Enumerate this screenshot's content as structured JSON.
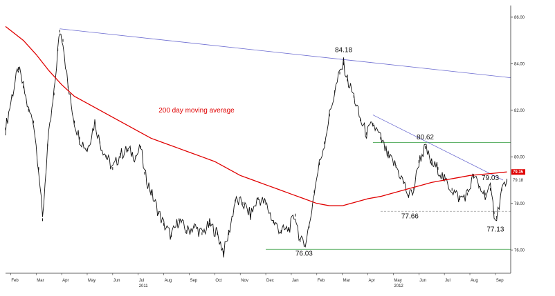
{
  "chart_data": {
    "type": "candlestick",
    "title": "",
    "xlabel": "",
    "ylabel": "",
    "ylim": [
      75.0,
      86.5
    ],
    "y_ticks": [
      "76.00",
      "78.00",
      "80.00",
      "82.00",
      "84.00",
      "86.00"
    ],
    "y_tick_values": [
      76,
      78,
      80,
      82,
      84,
      86
    ],
    "month_labels": [
      "Feb",
      "Mar",
      "Apr",
      "May",
      "Jun",
      "Jul",
      "Aug",
      "Sep",
      "Oct",
      "Nov",
      "Dec",
      "Jan",
      "Feb",
      "Mar",
      "Apr",
      "May",
      "Jun",
      "Jul",
      "Aug",
      "Sep"
    ],
    "month_positions": [
      0,
      1,
      2,
      3,
      4,
      5,
      6,
      7,
      8,
      9,
      10,
      11,
      12,
      13,
      14,
      15,
      16,
      17,
      18,
      19
    ],
    "x_range": [
      -0.2,
      19.6
    ],
    "year_labels": [
      {
        "text": "2011",
        "at": 5
      },
      {
        "text": "2012",
        "at": 15
      }
    ],
    "price_series": [
      [
        -0.2,
        81.2
      ],
      [
        0.05,
        82.6
      ],
      [
        0.3,
        83.8
      ],
      [
        0.5,
        83.0
      ],
      [
        0.7,
        82.0
      ],
      [
        0.9,
        81.5
      ],
      [
        1.1,
        79.5
      ],
      [
        1.25,
        77.3
      ],
      [
        1.45,
        80.5
      ],
      [
        1.7,
        82.7
      ],
      [
        1.85,
        84.6
      ],
      [
        1.93,
        85.4
      ],
      [
        2.05,
        85.0
      ],
      [
        2.25,
        83.0
      ],
      [
        2.5,
        81.5
      ],
      [
        2.7,
        80.8
      ],
      [
        3.0,
        80.3
      ],
      [
        3.3,
        81.5
      ],
      [
        3.5,
        80.6
      ],
      [
        3.75,
        80.0
      ],
      [
        4.0,
        79.5
      ],
      [
        4.3,
        80.1
      ],
      [
        4.6,
        80.3
      ],
      [
        4.9,
        80.0
      ],
      [
        5.1,
        80.4
      ],
      [
        5.25,
        79.3
      ],
      [
        5.5,
        78.5
      ],
      [
        5.8,
        77.6
      ],
      [
        6.0,
        77.1
      ],
      [
        6.3,
        76.6
      ],
      [
        6.6,
        77.3
      ],
      [
        6.9,
        76.8
      ],
      [
        7.2,
        77.0
      ],
      [
        7.5,
        76.7
      ],
      [
        7.8,
        77.1
      ],
      [
        8.1,
        76.7
      ],
      [
        8.35,
        75.9
      ],
      [
        8.55,
        76.7
      ],
      [
        8.8,
        78.1
      ],
      [
        9.1,
        78.0
      ],
      [
        9.4,
        77.5
      ],
      [
        9.7,
        78.2
      ],
      [
        10.0,
        78.0
      ],
      [
        10.3,
        77.2
      ],
      [
        10.6,
        76.8
      ],
      [
        10.9,
        76.9
      ],
      [
        11.15,
        77.5
      ],
      [
        11.35,
        76.4
      ],
      [
        11.5,
        76.2
      ],
      [
        11.7,
        77.0
      ],
      [
        11.9,
        78.5
      ],
      [
        12.1,
        79.7
      ],
      [
        12.3,
        80.6
      ],
      [
        12.5,
        81.8
      ],
      [
        12.7,
        82.8
      ],
      [
        12.9,
        83.6
      ],
      [
        13.05,
        84.0
      ],
      [
        13.2,
        83.3
      ],
      [
        13.45,
        82.6
      ],
      [
        13.7,
        81.6
      ],
      [
        13.95,
        81.0
      ],
      [
        14.2,
        81.4
      ],
      [
        14.5,
        80.8
      ],
      [
        14.8,
        80.0
      ],
      [
        15.1,
        79.6
      ],
      [
        15.4,
        78.9
      ],
      [
        15.6,
        78.3
      ],
      [
        15.8,
        78.6
      ],
      [
        16.0,
        79.8
      ],
      [
        16.25,
        80.4
      ],
      [
        16.5,
        79.7
      ],
      [
        16.75,
        79.5
      ],
      [
        17.0,
        79.0
      ],
      [
        17.3,
        78.6
      ],
      [
        17.6,
        78.2
      ],
      [
        17.9,
        78.4
      ],
      [
        18.15,
        79.2
      ],
      [
        18.35,
        78.7
      ],
      [
        18.6,
        78.4
      ],
      [
        18.8,
        78.6
      ],
      [
        18.95,
        77.6
      ],
      [
        19.05,
        77.4
      ],
      [
        19.25,
        78.6
      ],
      [
        19.45,
        79.0
      ]
    ],
    "moving_average_200": [
      [
        -0.2,
        85.6
      ],
      [
        0.5,
        85.0
      ],
      [
        1.0,
        84.4
      ],
      [
        1.5,
        83.7
      ],
      [
        2.0,
        83.1
      ],
      [
        2.5,
        82.6
      ],
      [
        3.0,
        82.3
      ],
      [
        3.5,
        82.0
      ],
      [
        4.0,
        81.7
      ],
      [
        4.5,
        81.4
      ],
      [
        5.0,
        81.1
      ],
      [
        5.5,
        80.8
      ],
      [
        6.0,
        80.6
      ],
      [
        6.5,
        80.4
      ],
      [
        7.0,
        80.2
      ],
      [
        7.5,
        80.0
      ],
      [
        8.0,
        79.8
      ],
      [
        8.5,
        79.5
      ],
      [
        9.0,
        79.2
      ],
      [
        9.5,
        79.0
      ],
      [
        10.0,
        78.8
      ],
      [
        10.5,
        78.6
      ],
      [
        11.0,
        78.4
      ],
      [
        11.5,
        78.2
      ],
      [
        12.0,
        78.0
      ],
      [
        12.5,
        77.9
      ],
      [
        13.0,
        77.9
      ],
      [
        13.5,
        78.05
      ],
      [
        14.0,
        78.2
      ],
      [
        14.5,
        78.3
      ],
      [
        15.0,
        78.45
      ],
      [
        15.5,
        78.6
      ],
      [
        16.0,
        78.75
      ],
      [
        16.5,
        78.9
      ],
      [
        17.0,
        79.0
      ],
      [
        17.5,
        79.1
      ],
      [
        18.0,
        79.2
      ],
      [
        18.5,
        79.25
      ],
      [
        19.0,
        79.3
      ],
      [
        19.45,
        79.35
      ]
    ],
    "trend_lines": [
      {
        "name": "long-term-resistance",
        "color": "#6a6ad0",
        "from": [
          1.93,
          85.5
        ],
        "to": [
          19.6,
          83.4
        ]
      },
      {
        "name": "short-term-resistance",
        "color": "#6a6ad0",
        "from": [
          14.2,
          81.8
        ],
        "to": [
          19.3,
          79.0
        ]
      }
    ],
    "horizontal_levels": [
      {
        "name": "resistance-80-62",
        "color": "#2e9a3a",
        "style": "solid",
        "y": 80.62,
        "from": 14.2,
        "to": 19.6
      },
      {
        "name": "support-77-66",
        "color": "#999999",
        "style": "dashed",
        "y": 77.66,
        "from": 14.5,
        "to": 19.6
      },
      {
        "name": "support-76-03",
        "color": "#2e9a3a",
        "style": "solid",
        "y": 76.03,
        "from": 10.0,
        "to": 19.6
      }
    ],
    "annotations": [
      {
        "text": "84.18",
        "x": 13.05,
        "y": 84.5
      },
      {
        "text": "80.62",
        "x": 16.25,
        "y": 80.75
      },
      {
        "text": "79.03",
        "x": 18.8,
        "y": 79.0
      },
      {
        "text": "77.66",
        "x": 15.65,
        "y": 77.35
      },
      {
        "text": "76.03",
        "x": 11.5,
        "y": 75.75
      },
      {
        "text": "77.13",
        "x": 19.0,
        "y": 76.8
      }
    ],
    "ma_label": {
      "text": "200 day moving average",
      "x": 5.8,
      "y": 81.9
    },
    "last_values": {
      "ma_tag": "79.35",
      "price_tag": "79.18"
    },
    "colors": {
      "price": "#111111",
      "moving_average": "#e00000",
      "ma_tag_bg": "#e00000"
    },
    "grid": false,
    "legend": "none"
  }
}
